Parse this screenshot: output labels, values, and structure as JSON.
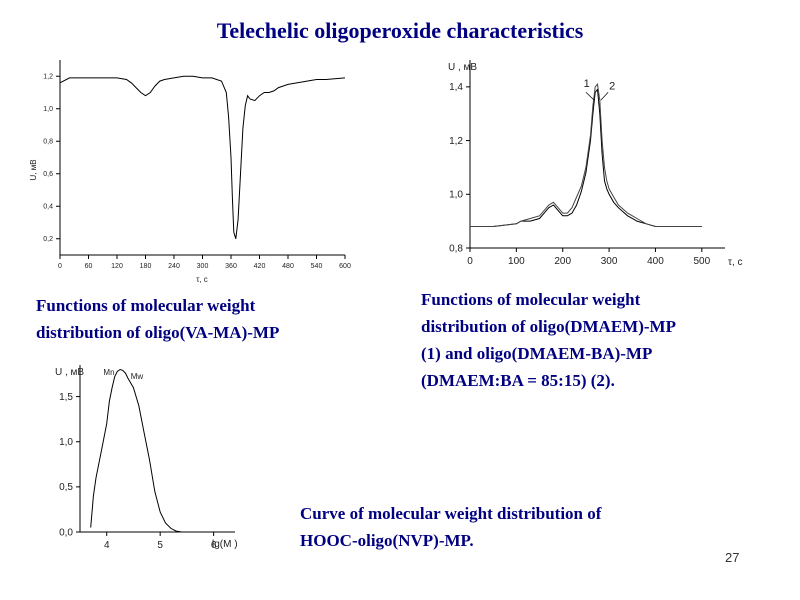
{
  "slide": {
    "title": "Telechelic oligoperoxide characteristics",
    "page_number": "27",
    "caption_top_left": [
      "Functions of molecular weight",
      "distribution of oligo(VA-MA)-MP"
    ],
    "caption_top_right": [
      "Functions of molecular weight",
      "distribution of oligo(DMAEM)-MP",
      "(1) and oligo(DMAEM-BA)-MP",
      "(DMAEM:BA = 85:15) (2)."
    ],
    "caption_bottom": [
      "Curve of molecular weight distribution of",
      "HOOC-oligo(NVP)-MP."
    ]
  },
  "chart_data": [
    {
      "type": "line",
      "ylabel": "U, мВ",
      "xlabel": "τ, c",
      "x_ticks": [
        "0",
        "60",
        "120",
        "180",
        "240",
        "300",
        "360",
        "420",
        "480",
        "540",
        "600"
      ],
      "y_ticks": [
        "0,2",
        "0,4",
        "0,6",
        "0,8",
        "1,0",
        "1,2"
      ],
      "xlim": [
        0,
        600
      ],
      "ylim": [
        0.1,
        1.3
      ],
      "series": [
        {
          "x": [
            0,
            20,
            40,
            60,
            80,
            100,
            120,
            140,
            150,
            160,
            170,
            180,
            190,
            200,
            210,
            220,
            240,
            260,
            280,
            300,
            320,
            340,
            350,
            355,
            360,
            363,
            366,
            370,
            375,
            380,
            385,
            390,
            395,
            400,
            410,
            420,
            430,
            440,
            450,
            460,
            480,
            500,
            520,
            540,
            560,
            600
          ],
          "values": [
            1.16,
            1.19,
            1.19,
            1.19,
            1.19,
            1.19,
            1.19,
            1.18,
            1.16,
            1.13,
            1.1,
            1.08,
            1.1,
            1.14,
            1.17,
            1.18,
            1.19,
            1.2,
            1.2,
            1.19,
            1.19,
            1.17,
            1.1,
            0.95,
            0.7,
            0.45,
            0.24,
            0.2,
            0.32,
            0.6,
            0.88,
            1.02,
            1.08,
            1.06,
            1.05,
            1.08,
            1.1,
            1.1,
            1.11,
            1.13,
            1.15,
            1.16,
            1.17,
            1.18,
            1.18,
            1.19
          ]
        }
      ]
    },
    {
      "type": "line",
      "ylabel": "U , мВ",
      "xlabel": "τ, c",
      "x_ticks": [
        "0",
        "100",
        "200",
        "300",
        "400",
        "500"
      ],
      "y_ticks": [
        "0,8",
        "1,0",
        "1,2",
        "1,4"
      ],
      "xlim": [
        0,
        550
      ],
      "ylim": [
        0.8,
        1.5
      ],
      "series": [
        {
          "name": "1",
          "x": [
            0,
            50,
            100,
            110,
            130,
            150,
            160,
            170,
            180,
            190,
            200,
            210,
            220,
            230,
            240,
            250,
            260,
            265,
            270,
            275,
            280,
            285,
            290,
            295,
            300,
            310,
            320,
            340,
            360,
            380,
            400,
            440,
            500
          ],
          "values": [
            0.88,
            0.88,
            0.89,
            0.9,
            0.9,
            0.91,
            0.93,
            0.95,
            0.96,
            0.94,
            0.92,
            0.92,
            0.93,
            0.96,
            1.01,
            1.08,
            1.2,
            1.3,
            1.38,
            1.39,
            1.3,
            1.15,
            1.05,
            1.02,
            1.0,
            0.97,
            0.95,
            0.92,
            0.9,
            0.89,
            0.88,
            0.88,
            0.88
          ]
        },
        {
          "name": "2",
          "x": [
            0,
            50,
            100,
            110,
            130,
            150,
            160,
            170,
            180,
            190,
            200,
            210,
            220,
            230,
            240,
            250,
            260,
            265,
            270,
            275,
            280,
            285,
            290,
            295,
            300,
            310,
            320,
            340,
            360,
            380,
            400,
            440,
            500
          ],
          "values": [
            0.88,
            0.88,
            0.89,
            0.9,
            0.91,
            0.92,
            0.94,
            0.96,
            0.97,
            0.95,
            0.93,
            0.93,
            0.95,
            0.99,
            1.03,
            1.1,
            1.22,
            1.33,
            1.4,
            1.41,
            1.35,
            1.2,
            1.1,
            1.05,
            1.02,
            0.99,
            0.96,
            0.93,
            0.91,
            0.89,
            0.88,
            0.88,
            0.88
          ]
        }
      ],
      "annotations": [
        "1",
        "2"
      ]
    },
    {
      "type": "line",
      "ylabel": "U , мВ",
      "xlabel": "lg(M )",
      "x_ticks": [
        "4",
        "5",
        "6"
      ],
      "y_ticks": [
        "0,0",
        "0,5",
        "1,0",
        "1,5"
      ],
      "xlim": [
        3.5,
        6.4
      ],
      "ylim": [
        0,
        1.85
      ],
      "annotations": [
        "Mn",
        "Mw"
      ],
      "series": [
        {
          "x": [
            3.7,
            3.75,
            3.8,
            3.9,
            4.0,
            4.05,
            4.1,
            4.15,
            4.2,
            4.25,
            4.3,
            4.35,
            4.4,
            4.5,
            4.6,
            4.7,
            4.8,
            4.9,
            5.0,
            5.1,
            5.2,
            5.3,
            5.4,
            5.6
          ],
          "values": [
            0.05,
            0.4,
            0.6,
            0.9,
            1.2,
            1.45,
            1.6,
            1.72,
            1.78,
            1.8,
            1.79,
            1.76,
            1.7,
            1.6,
            1.4,
            1.1,
            0.8,
            0.45,
            0.22,
            0.1,
            0.04,
            0.01,
            0.0,
            0.0
          ]
        }
      ]
    }
  ]
}
